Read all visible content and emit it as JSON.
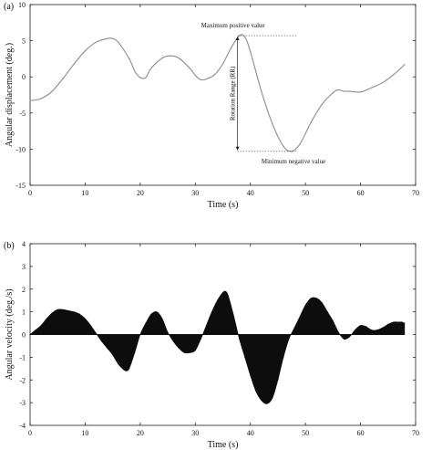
{
  "chart_data": [
    {
      "panel_label": "(a)",
      "type": "line",
      "xlabel": "Time (s)",
      "ylabel": "Angular displacement (deg.)",
      "xlim": [
        0,
        70
      ],
      "ylim": [
        -15,
        10
      ],
      "xticks": [
        0,
        10,
        20,
        30,
        40,
        50,
        60,
        70
      ],
      "yticks": [
        10,
        5,
        0,
        -5,
        -10,
        -15
      ],
      "x_tick_labels": [
        "0",
        "10",
        "20",
        "30",
        "40",
        "50",
        "60",
        "70"
      ],
      "y_tick_labels": [
        "10",
        "5",
        "0",
        "-5",
        "-10",
        "-15"
      ],
      "series": [
        {
          "x": [
            0,
            2,
            4,
            6,
            8,
            10,
            12,
            14,
            15,
            16,
            18,
            19,
            20,
            21,
            22,
            24,
            25.5,
            27,
            29,
            30,
            31,
            32,
            33.5,
            35,
            36.5,
            38,
            39,
            40,
            42,
            44,
            46,
            47.5,
            49,
            51,
            53,
            55,
            56,
            57,
            58,
            60,
            62,
            64,
            66,
            68
          ],
          "y": [
            -3.3,
            -3.0,
            -2.0,
            -0.2,
            1.8,
            3.6,
            4.8,
            5.3,
            5.3,
            4.8,
            2.5,
            0.8,
            -0.1,
            -0.1,
            1.2,
            2.6,
            2.9,
            2.6,
            1.2,
            0.2,
            -0.4,
            -0.3,
            0.3,
            1.8,
            4.0,
            5.7,
            5.5,
            3.5,
            -2.0,
            -6.5,
            -9.6,
            -10.3,
            -9.3,
            -6.3,
            -3.8,
            -2.2,
            -1.8,
            -2.0,
            -2.0,
            -2.1,
            -1.5,
            -0.8,
            0.3,
            1.7
          ]
        }
      ],
      "annotations": {
        "max_label": "Maximum positive value",
        "min_label": "Minimum negative value",
        "range_label": "Rotation Range (RR)"
      },
      "max_point": {
        "x": 38,
        "y": 5.7
      },
      "min_point": {
        "x": 47.5,
        "y": -10.3
      },
      "grid": false
    },
    {
      "panel_label": "(b)",
      "type": "area",
      "xlabel": "Time (s)",
      "ylabel": "Angular velocity (deg./s)",
      "xlim": [
        0,
        70
      ],
      "ylim": [
        -4,
        4
      ],
      "xticks": [
        0,
        10,
        20,
        30,
        40,
        50,
        60,
        70
      ],
      "yticks": [
        4,
        3,
        2,
        1,
        0,
        -1,
        -2,
        -3,
        -4
      ],
      "x_tick_labels": [
        "0",
        "10",
        "20",
        "30",
        "40",
        "50",
        "60",
        "70"
      ],
      "y_tick_labels": [
        "4",
        "3",
        "2",
        "1",
        "0",
        "-1",
        "-2",
        "-3",
        "-4"
      ],
      "series": [
        {
          "x": [
            0,
            1,
            2,
            3,
            4,
            5,
            6,
            7,
            8,
            9,
            10,
            11,
            12,
            13,
            14,
            15,
            16,
            17,
            17.5,
            18,
            19,
            20,
            21,
            22,
            23,
            24,
            25,
            26,
            27,
            28,
            29,
            30,
            31,
            32,
            33,
            34,
            35,
            35.5,
            36,
            37,
            38,
            39,
            40,
            41,
            42,
            43,
            44,
            45,
            46,
            47,
            48,
            49,
            50,
            51,
            52,
            53,
            54,
            55,
            56,
            57,
            58,
            59,
            60,
            61,
            62,
            63,
            64,
            65,
            66,
            67,
            67.5,
            68
          ],
          "y": [
            0.0,
            0.2,
            0.4,
            0.7,
            0.95,
            1.1,
            1.1,
            1.05,
            1.0,
            0.9,
            0.7,
            0.4,
            0.05,
            -0.3,
            -0.6,
            -0.9,
            -1.3,
            -1.55,
            -1.6,
            -1.5,
            -0.8,
            0.0,
            0.5,
            0.9,
            1.0,
            0.7,
            0.1,
            -0.3,
            -0.6,
            -0.8,
            -0.8,
            -0.7,
            -0.2,
            0.4,
            1.0,
            1.5,
            1.85,
            1.9,
            1.7,
            0.8,
            -0.2,
            -1.0,
            -1.8,
            -2.5,
            -2.9,
            -3.05,
            -2.8,
            -2.0,
            -1.0,
            -0.2,
            0.3,
            0.8,
            1.3,
            1.6,
            1.6,
            1.4,
            1.0,
            0.6,
            0.1,
            -0.2,
            -0.1,
            0.2,
            0.4,
            0.35,
            0.2,
            0.2,
            0.3,
            0.45,
            0.55,
            0.55,
            0.55,
            0.5
          ]
        }
      ],
      "grid": false
    }
  ]
}
